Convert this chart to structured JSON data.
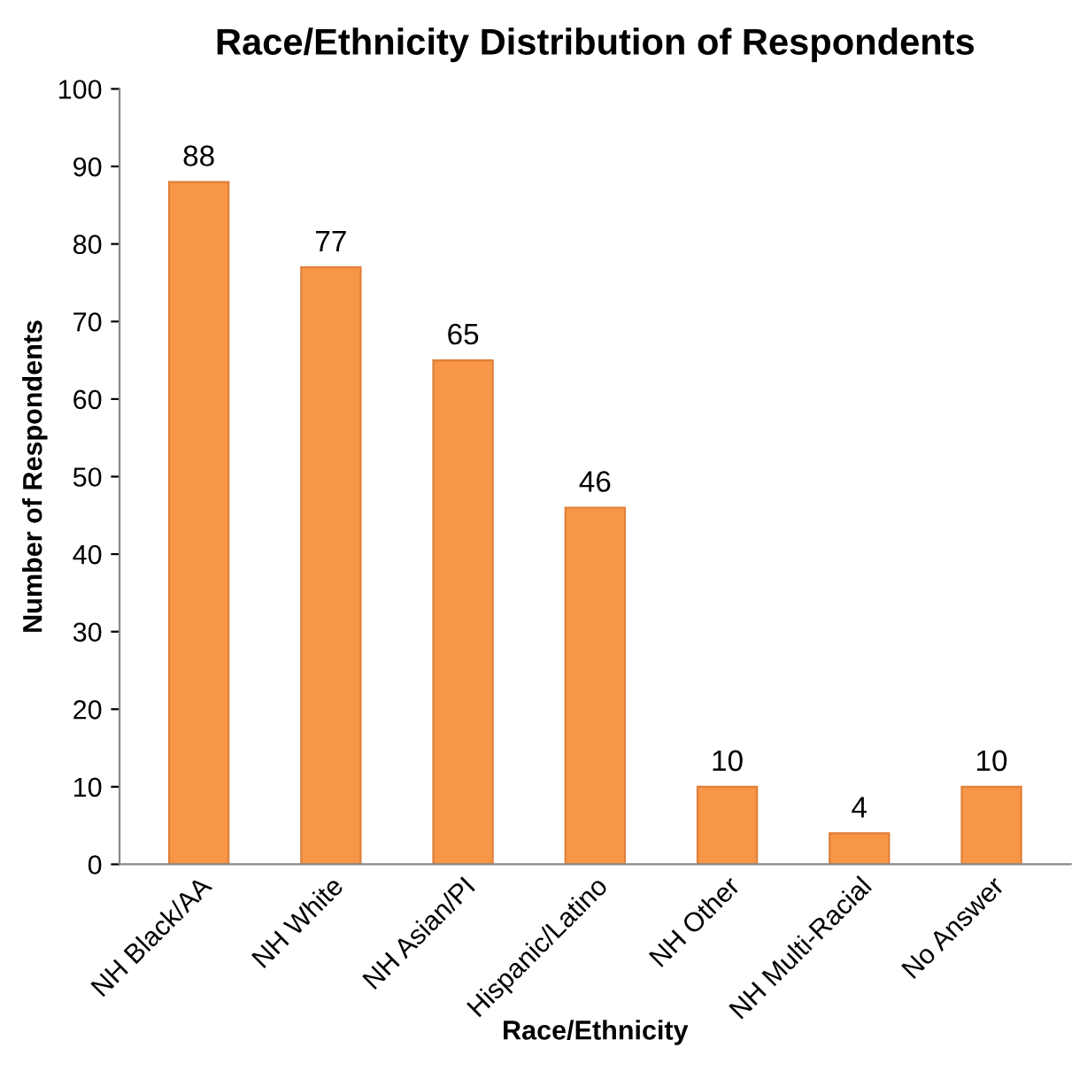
{
  "chart_data": {
    "type": "bar",
    "title": "Race/Ethnicity Distribution of Respondents",
    "xlabel": "Race/Ethnicity",
    "ylabel": "Number of Respondents",
    "categories": [
      "NH Black/AA",
      "NH White",
      "NH Asian/PI",
      "Hispanic/Latino",
      "NH Other",
      "NH Multi-Racial",
      "No Answer"
    ],
    "values": [
      88,
      77,
      65,
      46,
      10,
      4,
      10
    ],
    "color": "#f79646",
    "ylim": [
      0,
      100
    ],
    "yticks": [
      0,
      10,
      20,
      30,
      40,
      50,
      60,
      70,
      80,
      90,
      100
    ],
    "grid": false,
    "data_labels": true
  }
}
